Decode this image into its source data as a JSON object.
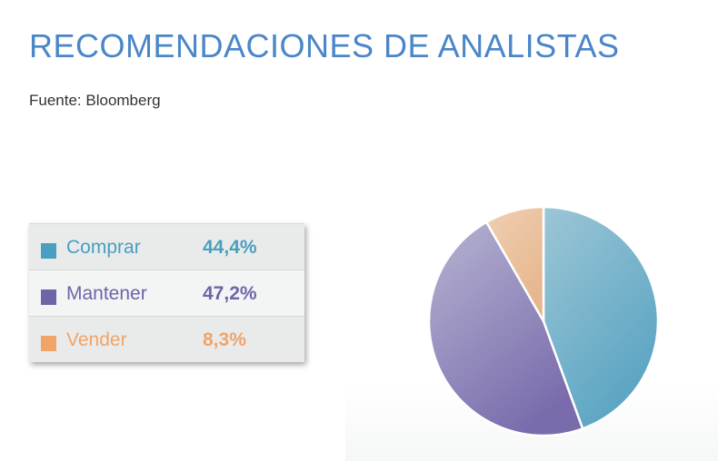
{
  "header": {
    "title": "RECOMENDACIONES DE ANALISTAS",
    "source": "Fuente: Bloomberg"
  },
  "legend": {
    "items": [
      {
        "label": "Comprar",
        "value_text": "44,4%",
        "color": "#4a9ec0"
      },
      {
        "label": "Mantener",
        "value_text": "47,2%",
        "color": "#6e65a8"
      },
      {
        "label": "Vender",
        "value_text": "8,3%",
        "color": "#f0a468"
      }
    ]
  },
  "chart_data": {
    "type": "pie",
    "categories": [
      "Comprar",
      "Mantener",
      "Vender"
    ],
    "values": [
      44.4,
      47.2,
      8.3
    ],
    "colors": {
      "Comprar": {
        "light": "#9cc6d6",
        "dark": "#5aa4c2"
      },
      "Mantener": {
        "light": "#b6b4d2",
        "dark": "#7a6cac"
      },
      "Vender": {
        "light": "#f0cfb2",
        "dark": "#e6b68e"
      }
    },
    "title": "RECOMENDACIONES DE ANALISTAS",
    "start": "top",
    "direction": "clockwise"
  }
}
